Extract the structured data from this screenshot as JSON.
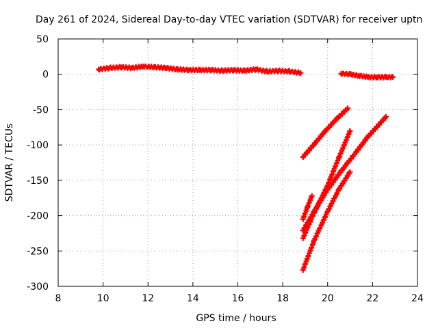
{
  "chart_data": {
    "type": "scatter",
    "title": "Day 261 of 2024, Sidereal Day-to-day VTEC variation (SDTVAR) for receiver uptn",
    "xlabel": "GPS time / hours",
    "ylabel": "SDTVAR / TECUs",
    "xlim": [
      8,
      24
    ],
    "ylim": [
      -300,
      50
    ],
    "xticks": [
      "8",
      "10",
      "12",
      "14",
      "16",
      "18",
      "20",
      "22",
      "24"
    ],
    "yticks": [
      "50",
      "0",
      "-50",
      "-100",
      "-150",
      "-200",
      "-250",
      "-300"
    ],
    "grid": true,
    "marker": "plus",
    "series": [
      {
        "color": "#ff0000",
        "x": [
          9.8,
          10.3,
          10.8,
          11.3,
          11.8,
          12.3,
          12.8,
          13.3,
          13.8,
          14.3,
          14.8,
          15.3,
          15.8,
          16.3,
          16.8,
          17.3,
          17.8,
          18.3,
          18.8
        ],
        "y": [
          7,
          9,
          10,
          9,
          11,
          10,
          9,
          7,
          6,
          6,
          6,
          5,
          6,
          5,
          7,
          4,
          5,
          4,
          2
        ]
      },
      {
        "color": "#ff0000",
        "x": [
          20.6,
          21.0,
          21.4,
          21.8,
          22.2,
          22.6,
          22.9
        ],
        "y": [
          1,
          0,
          -2,
          -4,
          -4,
          -4,
          -4
        ]
      },
      {
        "color": "#ff0000",
        "x": [
          18.9,
          19.4,
          19.9,
          20.4,
          20.9
        ],
        "y": [
          -117,
          -99,
          -80,
          -63,
          -48
        ]
      },
      {
        "color": "#ff0000",
        "x": [
          18.9,
          19.4,
          20.0,
          20.5,
          21.0
        ],
        "y": [
          -232,
          -196,
          -157,
          -118,
          -80
        ]
      },
      {
        "color": "#ff0000",
        "x": [
          18.9,
          19.4,
          20.0,
          20.5,
          21.0
        ],
        "y": [
          -277,
          -235,
          -194,
          -163,
          -138
        ]
      },
      {
        "color": "#ff0000",
        "x": [
          18.9,
          19.4,
          20.0,
          20.6,
          21.2,
          21.8,
          22.6
        ],
        "y": [
          -221,
          -194,
          -163,
          -137,
          -113,
          -88,
          -60
        ]
      },
      {
        "color": "#ff0000",
        "x": [
          18.9,
          19.1,
          19.3
        ],
        "y": [
          -205,
          -188,
          -172
        ]
      }
    ]
  }
}
